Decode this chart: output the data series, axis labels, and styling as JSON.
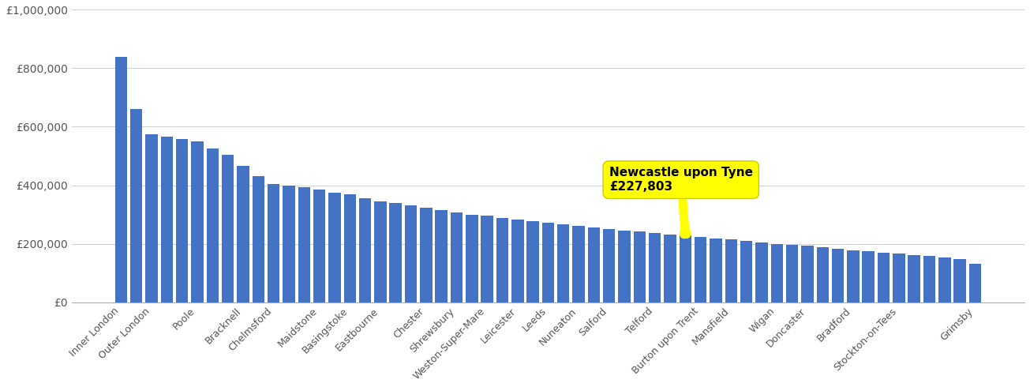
{
  "bar_color": "#4472c4",
  "background_color": "#ffffff",
  "grid_color": "#d0d0d0",
  "ylim": [
    0,
    1000000
  ],
  "yticks": [
    0,
    200000,
    400000,
    600000,
    800000,
    1000000
  ],
  "ytick_labels": [
    "£0",
    "£200,000",
    "£400,000",
    "£600,000",
    "£800,000",
    "£1,000,000"
  ],
  "newcastle_val": 227803,
  "annotation_text": "Newcastle upon Tyne\n£227,803",
  "all_values": [
    840000,
    660000,
    575000,
    567000,
    558000,
    550000,
    525000,
    505000,
    465000,
    430000,
    405000,
    400000,
    393000,
    385000,
    375000,
    368000,
    355000,
    345000,
    338000,
    330000,
    322000,
    315000,
    308000,
    300000,
    295000,
    288000,
    282000,
    277000,
    271000,
    266000,
    261000,
    256000,
    251000,
    246000,
    241000,
    237000,
    232000,
    227803,
    222000,
    218000,
    214000,
    210000,
    205000,
    200000,
    196000,
    192000,
    188000,
    183000,
    178000,
    174000,
    170000,
    166000,
    162000,
    157000,
    152000,
    147000,
    130000
  ],
  "newcastle_idx": 37,
  "label_indices": [
    0,
    2,
    5,
    8,
    10,
    13,
    15,
    17,
    20,
    22,
    24,
    26,
    28,
    30,
    32,
    35,
    38,
    40,
    43,
    45,
    48,
    51,
    56
  ],
  "label_names": [
    "Inner London",
    "Outer London",
    "Poole",
    "Bracknell",
    "Chelmsford",
    "Maidstone",
    "Basingstoke",
    "Eastbourne",
    "Chester",
    "Shrewsbury",
    "Weston-Super-Mare",
    "Leicester",
    "Leeds",
    "Nuneaton",
    "Salford",
    "Telford",
    "Burton upon Trent",
    "Mansfield",
    "Wigan",
    "Doncaster",
    "Bradford",
    "Stockton-on-Tees",
    "Grimsby"
  ]
}
